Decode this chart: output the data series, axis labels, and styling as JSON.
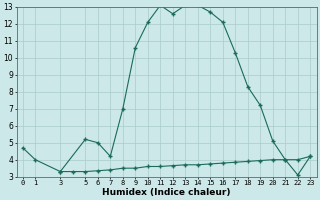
{
  "title": "",
  "xlabel": "Humidex (Indice chaleur)",
  "background_color": "#cce8e8",
  "grid_color": "#aacccc",
  "line_color": "#1a6b5a",
  "marker_color": "#1a6b5a",
  "x_upper": [
    0,
    1,
    3,
    5,
    6,
    7,
    8,
    9,
    10,
    11,
    12,
    13,
    14,
    15,
    16,
    17,
    18,
    19,
    20,
    21,
    22,
    23
  ],
  "y_upper": [
    4.7,
    4.0,
    3.3,
    5.2,
    5.0,
    4.2,
    7.0,
    10.6,
    12.1,
    13.1,
    12.6,
    13.1,
    13.1,
    12.7,
    12.1,
    10.3,
    8.3,
    7.2,
    5.1,
    4.0,
    4.0,
    4.2
  ],
  "x_lower": [
    3,
    4,
    5,
    6,
    7,
    8,
    9,
    10,
    11,
    12,
    13,
    14,
    15,
    16,
    17,
    18,
    19,
    20,
    21,
    22,
    23
  ],
  "y_lower": [
    3.3,
    3.3,
    3.3,
    3.35,
    3.4,
    3.5,
    3.5,
    3.6,
    3.6,
    3.65,
    3.7,
    3.7,
    3.75,
    3.8,
    3.85,
    3.9,
    3.95,
    4.0,
    4.0,
    3.1,
    4.2
  ],
  "ylim": [
    3,
    13
  ],
  "yticks": [
    3,
    4,
    5,
    6,
    7,
    8,
    9,
    10,
    11,
    12,
    13
  ],
  "xlim": [
    -0.5,
    23.5
  ],
  "xticks": [
    0,
    1,
    3,
    5,
    6,
    7,
    8,
    9,
    10,
    11,
    12,
    13,
    14,
    15,
    16,
    17,
    18,
    19,
    20,
    21,
    22,
    23
  ],
  "ytick_fontsize": 5.5,
  "xtick_fontsize": 5.0,
  "xlabel_fontsize": 6.5
}
